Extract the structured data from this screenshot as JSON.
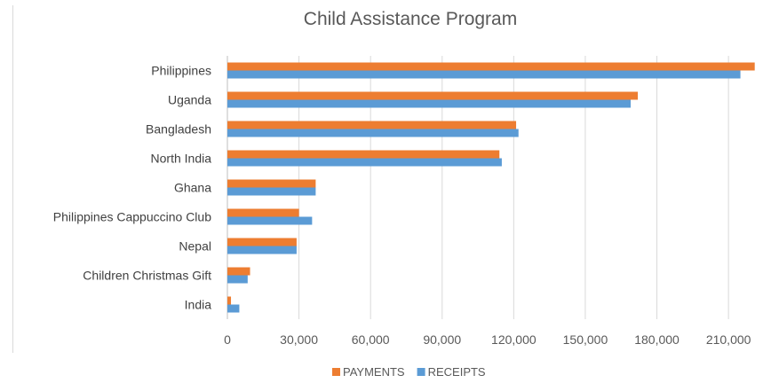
{
  "chart_data": {
    "type": "bar",
    "orientation": "horizontal",
    "title": "Child Assistance Program",
    "categories": [
      "Philippines",
      "Uganda",
      "Bangladesh",
      "North India",
      "Ghana",
      "Philippines Cappuccino Club",
      "Nepal",
      "Children Christmas Gift",
      "India"
    ],
    "series": [
      {
        "name": "PAYMENTS",
        "color": "#ED7D31",
        "values": [
          221000,
          172000,
          121000,
          114000,
          37000,
          30000,
          29000,
          9500,
          1500
        ]
      },
      {
        "name": "RECEIPTS",
        "color": "#5B9BD5",
        "values": [
          215000,
          169000,
          122000,
          115000,
          37000,
          35500,
          29000,
          8500,
          5000
        ]
      }
    ],
    "xlim": [
      0,
      220000
    ],
    "xticks": [
      0,
      30000,
      60000,
      90000,
      120000,
      150000,
      180000,
      210000
    ],
    "xtick_labels": [
      "0",
      "30,000",
      "60,000",
      "90,000",
      "120,000",
      "150,000",
      "180,000",
      "210,000"
    ],
    "grid": true,
    "legend_position": "bottom"
  }
}
